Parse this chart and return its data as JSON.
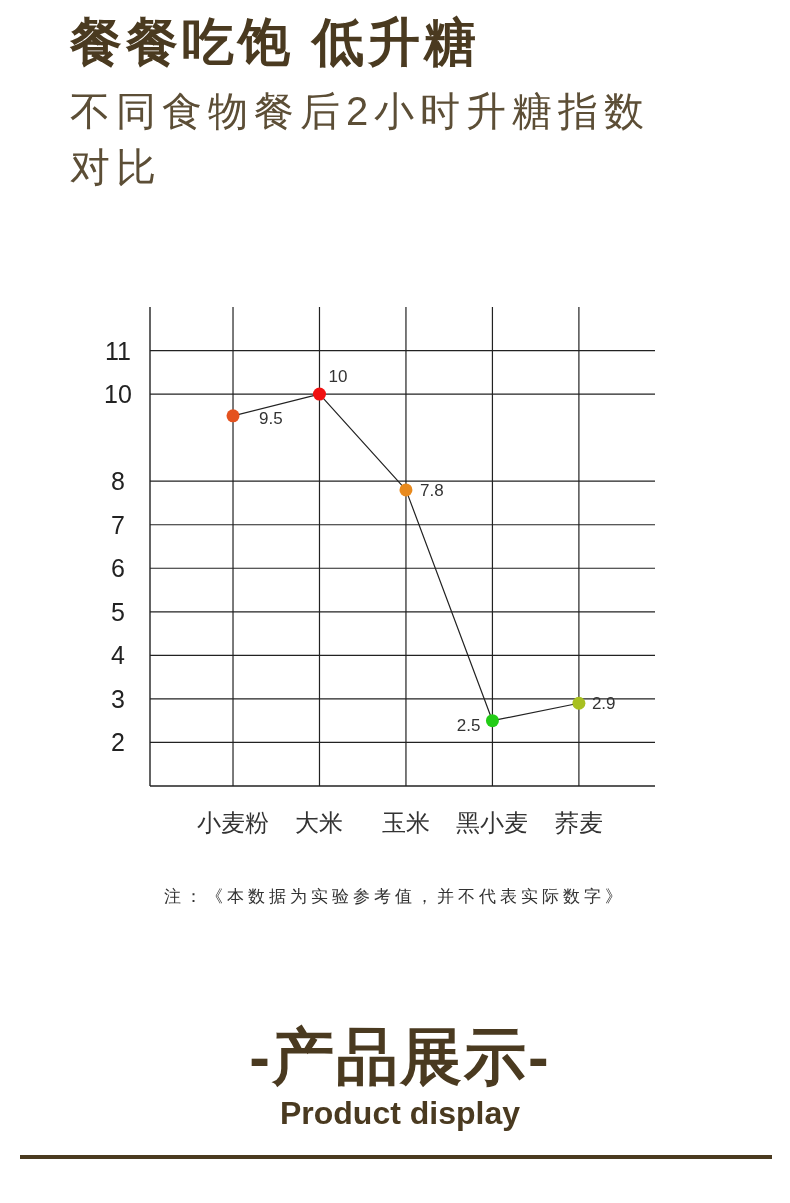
{
  "chart_data": {
    "type": "line",
    "title": "餐餐吃饱 低升糖",
    "subtitle": "不同食物餐后2小时升糖指数对比",
    "categories": [
      "小麦粉",
      "大米",
      "玉米",
      "黑小麦",
      "荞麦"
    ],
    "values": [
      9.5,
      10,
      7.8,
      2.5,
      2.9
    ],
    "colors": [
      "#e4521f",
      "#f01010",
      "#e88a1e",
      "#22cc16",
      "#a8c020"
    ],
    "color": "#222222",
    "marker": "circle",
    "data_labels": true,
    "ylim": [
      1,
      12
    ],
    "yticks": [
      2,
      3,
      4,
      5,
      6,
      7,
      8,
      10,
      11
    ],
    "grid": true,
    "annotations": [
      "注：《本数据为实验参考值，并不代表实际数字》",
      "-产品展示-",
      "Product display"
    ]
  }
}
